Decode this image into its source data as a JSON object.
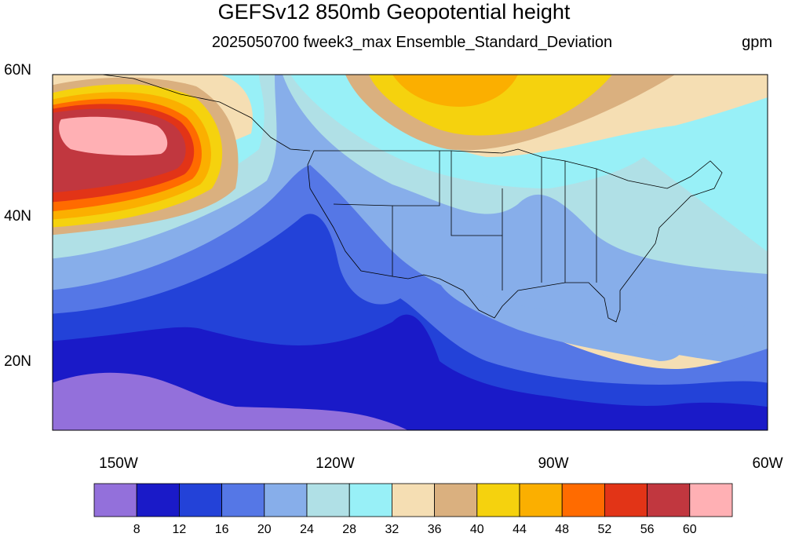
{
  "title": "GEFSv12 850mb Geopotential height",
  "subtitle": "2025050700 fweek3_max Ensemble_Standard_Deviation",
  "units": "gpm",
  "lat_labels": [
    "60N",
    "40N",
    "20N"
  ],
  "lon_labels": [
    "150W",
    "120W",
    "90W",
    "60W"
  ],
  "colorbar": {
    "colors": [
      "#9370db",
      "#1a1ac8",
      "#2342d8",
      "#5577e6",
      "#87aeea",
      "#b0e0e6",
      "#98f0f7",
      "#f5deb3",
      "#dab07f",
      "#f5d20e",
      "#fbaf00",
      "#ff6b00",
      "#e23417",
      "#c1373f",
      "#ffb0b4"
    ],
    "labels": [
      "8",
      "12",
      "16",
      "20",
      "24",
      "28",
      "32",
      "36",
      "40",
      "44",
      "48",
      "52",
      "56",
      "60"
    ]
  }
}
